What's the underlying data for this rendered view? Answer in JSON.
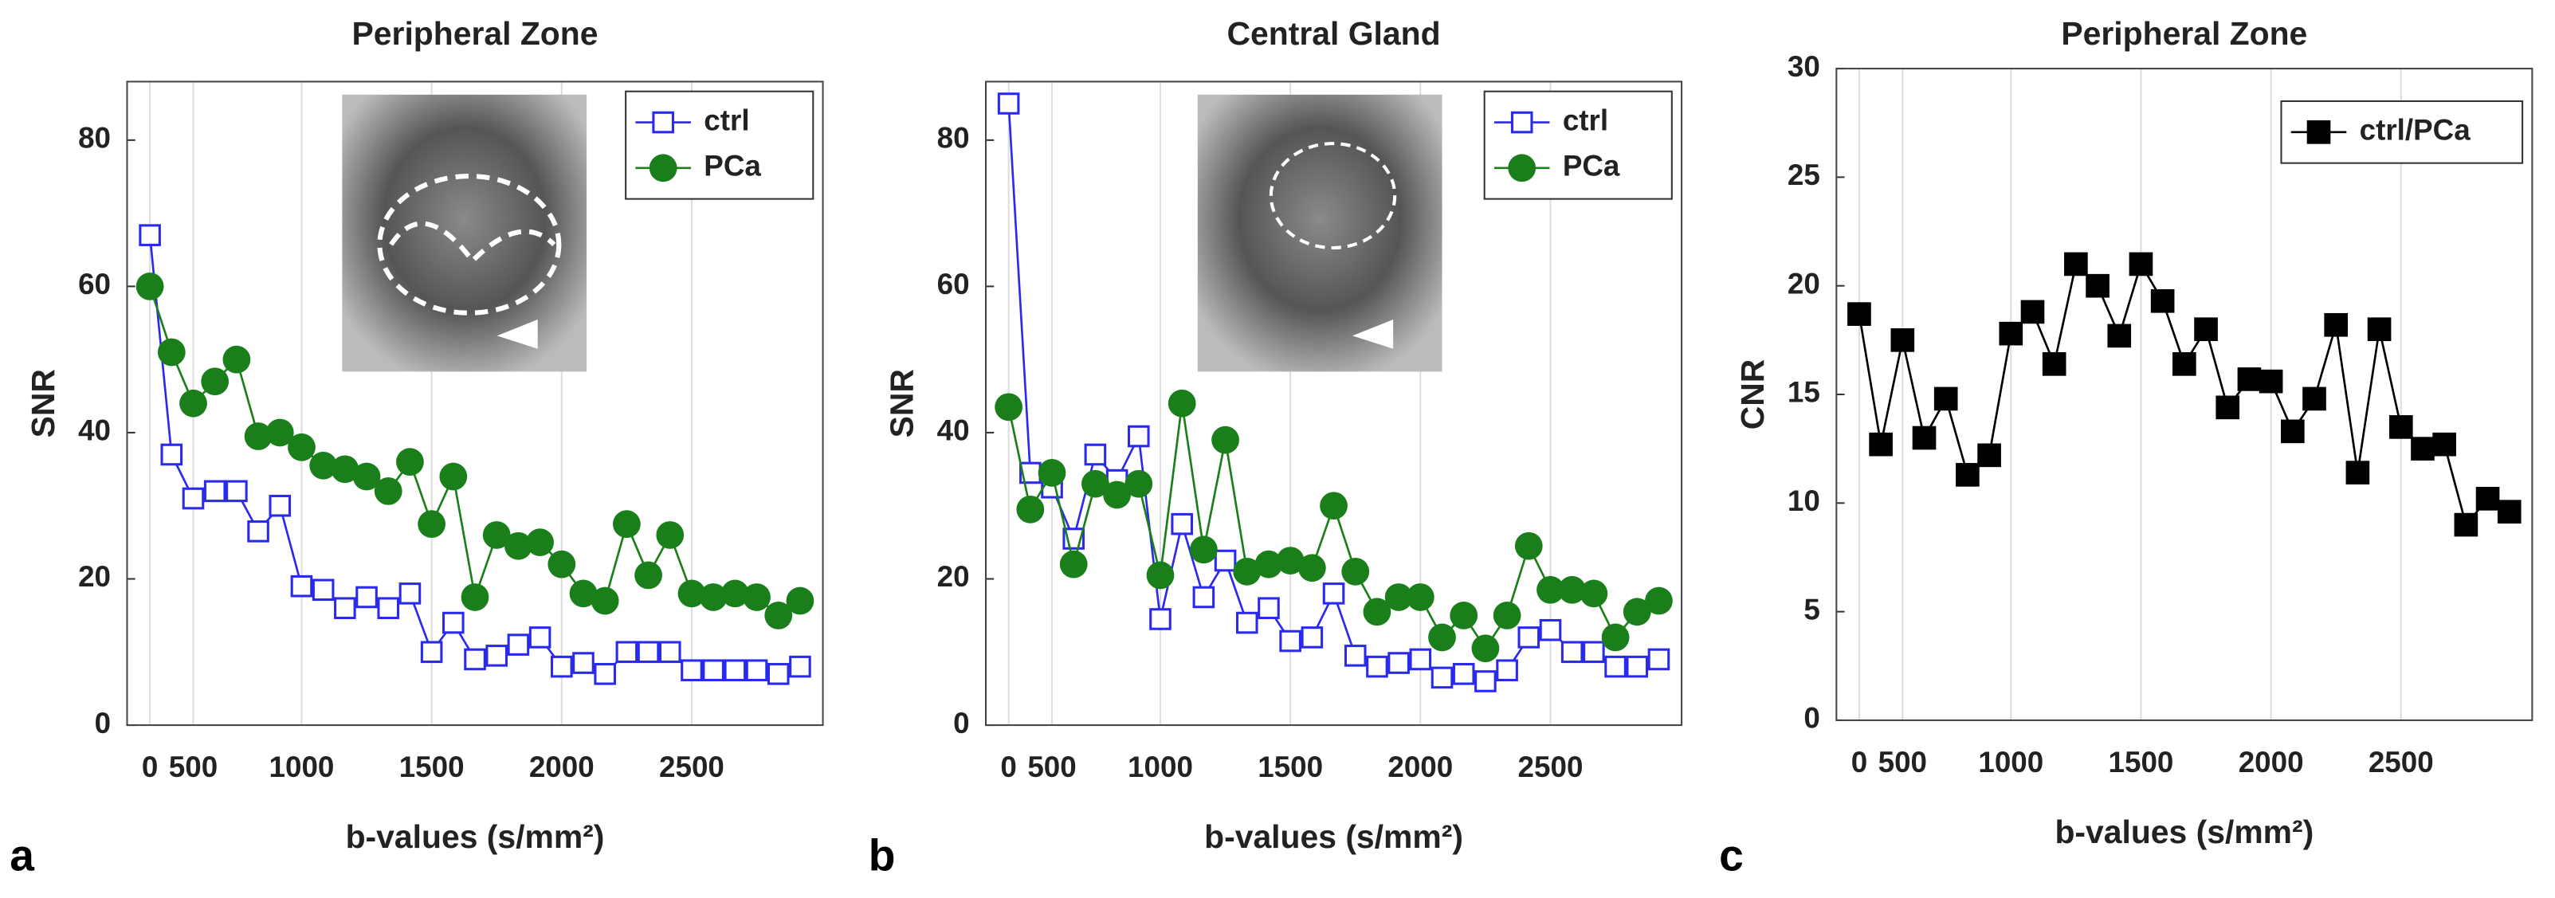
{
  "chart_data": [
    {
      "type": "line",
      "title": "Peripheral Zone",
      "xlabel": "b-values (s/mm²)",
      "ylabel": "SNR",
      "panel_label": "a",
      "categories": [
        "0",
        null,
        "500",
        null,
        null,
        null,
        null,
        "1000",
        null,
        null,
        null,
        null,
        null,
        "1500",
        null,
        null,
        null,
        null,
        null,
        "2000",
        null,
        null,
        null,
        null,
        null,
        "2500",
        null,
        null,
        null,
        null,
        null
      ],
      "series": [
        {
          "name": "ctrl",
          "color": "#2a2aee",
          "marker": "open-square",
          "values": [
            67,
            37,
            31,
            32,
            32,
            26.5,
            30,
            19,
            18.5,
            16,
            17.5,
            16,
            18,
            10,
            14,
            9,
            9.5,
            11,
            12,
            8,
            8.5,
            7,
            10,
            10,
            10,
            7.5,
            7.5,
            7.5,
            7.5,
            7,
            8
          ]
        },
        {
          "name": "PCa",
          "color": "#1a7f1a",
          "marker": "circle",
          "values": [
            60,
            51,
            44,
            47,
            50,
            39.5,
            40,
            38,
            35.5,
            35,
            34,
            32,
            36,
            27.5,
            34,
            17.5,
            26,
            24.5,
            25,
            22,
            18,
            17,
            27.5,
            20.5,
            26,
            18,
            17.5,
            18,
            17.5,
            15,
            17
          ]
        }
      ],
      "ylim": [
        0,
        88
      ],
      "yticks": [
        0,
        20,
        40,
        60,
        80
      ],
      "grid": true,
      "legend": "upper right"
    },
    {
      "type": "line",
      "title": "Central Gland",
      "xlabel": "b-values (s/mm²)",
      "ylabel": "SNR",
      "panel_label": "b",
      "categories": [
        "0",
        null,
        "500",
        null,
        null,
        null,
        null,
        "1000",
        null,
        null,
        null,
        null,
        null,
        "1500",
        null,
        null,
        null,
        null,
        null,
        "2000",
        null,
        null,
        null,
        null,
        null,
        "2500",
        null,
        null,
        null,
        null,
        null
      ],
      "series": [
        {
          "name": "ctrl",
          "color": "#2a2aee",
          "marker": "open-square",
          "values": [
            85,
            34.5,
            32.5,
            25.5,
            37,
            33.5,
            39.5,
            14.5,
            27.5,
            17.5,
            22.5,
            14,
            16,
            11.5,
            12,
            18,
            9.5,
            8,
            8.5,
            9,
            6.5,
            7,
            6,
            7.5,
            12,
            13,
            10,
            10,
            8,
            8,
            9
          ]
        },
        {
          "name": "PCa",
          "color": "#1a7f1a",
          "marker": "circle",
          "values": [
            43.5,
            29.5,
            34.5,
            22,
            33,
            31.5,
            33,
            20.5,
            44,
            24,
            39,
            21,
            22,
            22.5,
            21.5,
            30,
            21,
            15.5,
            17.5,
            17.5,
            12,
            15,
            10.5,
            15,
            24.5,
            18.5,
            18.5,
            18,
            12,
            15.5,
            17
          ]
        }
      ],
      "ylim": [
        0,
        88
      ],
      "yticks": [
        0,
        20,
        40,
        60,
        80
      ],
      "grid": true,
      "legend": "upper right"
    },
    {
      "type": "line",
      "title": "Peripheral Zone",
      "xlabel": "b-values (s/mm²)",
      "ylabel": "CNR",
      "panel_label": "c",
      "categories": [
        "0",
        null,
        "500",
        null,
        null,
        null,
        null,
        "1000",
        null,
        null,
        null,
        null,
        null,
        "1500",
        null,
        null,
        null,
        null,
        null,
        "2000",
        null,
        null,
        null,
        null,
        null,
        "2500",
        null,
        null,
        null,
        null,
        null
      ],
      "series": [
        {
          "name": "ctrl/PCa",
          "color": "#000000",
          "marker": "square",
          "values": [
            18.7,
            12.7,
            17.5,
            13,
            14.8,
            11.3,
            12.2,
            17.8,
            18.8,
            16.4,
            21,
            20,
            17.7,
            21,
            19.3,
            16.4,
            18,
            14.4,
            15.7,
            15.6,
            13.3,
            14.8,
            18.2,
            11.4,
            18,
            13.5,
            12.5,
            12.7,
            9,
            10.2,
            9.6
          ]
        }
      ],
      "ylim": [
        0,
        30
      ],
      "yticks": [
        0,
        5,
        10,
        15,
        20,
        25,
        30
      ],
      "grid": true,
      "legend": "upper right"
    }
  ]
}
